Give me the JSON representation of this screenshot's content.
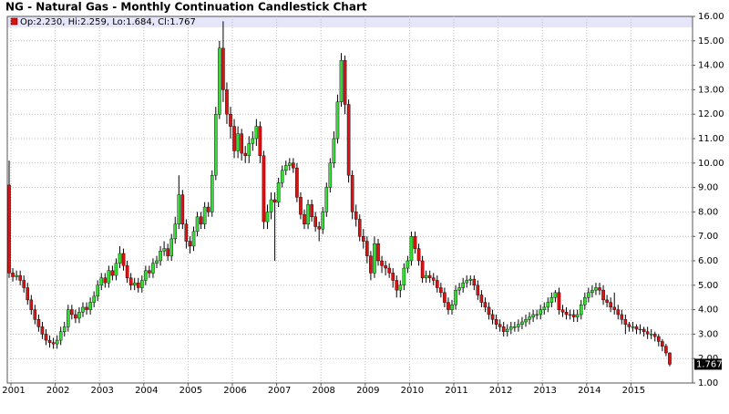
{
  "chart_data": {
    "type": "candlestick",
    "title": "NG - Natural Gas - Monthly Continuation Candlestick Chart",
    "legend": "Op:2.230, Hi:2.259, Lo:1.684, Cl:1.767",
    "up_color": "#33dd33",
    "down_color": "#dd1111",
    "grid": true,
    "categories": [
      "2001",
      null,
      null,
      null,
      null,
      null,
      null,
      null,
      null,
      null,
      null,
      null,
      "2002",
      null,
      null,
      null,
      null,
      null,
      null,
      null,
      null,
      null,
      null,
      null,
      "2003",
      null,
      null,
      null,
      null,
      null,
      null,
      null,
      null,
      null,
      null,
      null,
      "2004",
      null,
      null,
      null,
      null,
      null,
      null,
      null,
      null,
      null,
      null,
      null,
      "2005",
      null,
      null,
      null,
      null,
      null,
      null,
      null,
      null,
      null,
      null,
      null,
      "2006",
      null,
      null,
      null,
      null,
      null,
      null,
      null,
      null,
      null,
      null,
      null,
      "2007",
      null,
      null,
      null,
      null,
      null,
      null,
      null,
      null,
      null,
      null,
      null,
      "2008",
      null,
      null,
      null,
      null,
      null,
      null,
      null,
      null,
      null,
      null,
      null,
      "2009",
      null,
      null,
      null,
      null,
      null,
      null,
      null,
      null,
      null,
      null,
      null,
      "2010",
      null,
      null,
      null,
      null,
      null,
      null,
      null,
      null,
      null,
      null,
      null,
      "2011",
      null,
      null,
      null,
      null,
      null,
      null,
      null,
      null,
      null,
      null,
      null,
      "2012",
      null,
      null,
      null,
      null,
      null,
      null,
      null,
      null,
      null,
      null,
      null,
      "2013",
      null,
      null,
      null,
      null,
      null,
      null,
      null,
      null,
      null,
      null,
      null,
      "2014",
      null,
      null,
      null,
      null,
      null,
      null,
      null,
      null,
      null,
      null,
      null,
      "2015",
      null,
      null,
      null,
      null,
      null,
      null,
      null,
      null,
      null,
      null,
      null
    ],
    "open": [
      9.1,
      5.5,
      5.35,
      5.4,
      5.2,
      4.9,
      4.4,
      4.0,
      3.6,
      3.3,
      3.0,
      2.75,
      2.65,
      2.6,
      2.75,
      3.1,
      3.3,
      4.0,
      3.8,
      3.65,
      3.9,
      4.1,
      4.0,
      4.3,
      4.55,
      5.0,
      5.3,
      5.1,
      5.6,
      5.4,
      5.9,
      6.3,
      5.8,
      5.3,
      5.0,
      5.1,
      4.9,
      5.2,
      5.6,
      5.5,
      5.9,
      6.0,
      6.4,
      6.5,
      6.2,
      6.9,
      7.5,
      8.7,
      7.5,
      6.8,
      6.6,
      7.2,
      7.8,
      7.5,
      8.2,
      8.0,
      9.5,
      12.0,
      14.7,
      13.0,
      12.0,
      11.5,
      10.5,
      11.2,
      10.4,
      10.3,
      10.8,
      11.0,
      11.5,
      10.3,
      7.6,
      8.0,
      8.5,
      8.4,
      9.2,
      9.7,
      9.9,
      10.0,
      9.8,
      8.6,
      7.9,
      7.5,
      8.3,
      7.8,
      7.4,
      7.3,
      8.0,
      9.0,
      10.0,
      11.0,
      12.5,
      14.2,
      12.4,
      9.5,
      8.0,
      7.7,
      7.0,
      6.8,
      6.2,
      5.5,
      6.7,
      6.0,
      5.8,
      5.7,
      5.5,
      5.2,
      4.8,
      5.0,
      5.7,
      6.0,
      7.0,
      6.5,
      6.0,
      5.3,
      5.4,
      5.3,
      5.2,
      4.9,
      4.7,
      4.3,
      4.0,
      4.2,
      4.8,
      4.9,
      5.1,
      5.2,
      5.25,
      5.0,
      4.6,
      4.3,
      4.1,
      3.8,
      3.6,
      3.4,
      3.3,
      3.1,
      3.2,
      3.3,
      3.3,
      3.4,
      3.5,
      3.6,
      3.7,
      3.8,
      3.8,
      4.0,
      4.1,
      4.3,
      4.5,
      4.7,
      4.0,
      3.9,
      3.8,
      3.8,
      3.7,
      3.8,
      4.2,
      4.5,
      4.7,
      4.8,
      4.9,
      4.8,
      4.4,
      4.3,
      4.1,
      4.0,
      3.8,
      3.6,
      3.4,
      3.3,
      3.3,
      3.2,
      3.2,
      3.1,
      3.0,
      3.0,
      2.9,
      2.7,
      2.5,
      2.23
    ],
    "high": [
      10.1,
      5.7,
      5.6,
      5.6,
      5.4,
      5.1,
      4.6,
      4.2,
      3.8,
      3.5,
      3.2,
      2.95,
      2.85,
      2.95,
      3.3,
      3.5,
      4.2,
      4.2,
      4.0,
      4.1,
      4.3,
      4.3,
      4.5,
      4.75,
      5.2,
      5.5,
      5.5,
      5.8,
      5.8,
      6.1,
      6.6,
      6.5,
      6.0,
      5.5,
      5.3,
      5.3,
      5.4,
      5.8,
      5.8,
      6.1,
      6.2,
      6.6,
      6.8,
      6.7,
      7.1,
      7.8,
      9.5,
      8.9,
      7.7,
      7.0,
      7.4,
      8.0,
      8.0,
      8.4,
      8.4,
      9.7,
      12.3,
      15.0,
      15.8,
      13.3,
      12.3,
      11.8,
      11.5,
      11.4,
      10.7,
      11.1,
      11.3,
      11.8,
      11.7,
      10.5,
      8.3,
      8.8,
      8.8,
      9.4,
      9.9,
      10.1,
      10.2,
      10.2,
      10.0,
      8.8,
      8.1,
      8.5,
      8.5,
      8.0,
      7.6,
      8.2,
      9.2,
      10.2,
      11.3,
      12.8,
      14.5,
      14.4,
      12.6,
      9.7,
      8.3,
      7.9,
      7.3,
      7.0,
      6.4,
      7.0,
      6.9,
      6.2,
      6.0,
      5.9,
      5.7,
      5.4,
      5.2,
      5.9,
      6.2,
      7.2,
      7.2,
      6.7,
      6.2,
      5.6,
      5.6,
      5.5,
      5.4,
      5.1,
      4.9,
      4.5,
      4.4,
      5.0,
      5.1,
      5.3,
      5.4,
      5.4,
      5.4,
      5.2,
      4.8,
      4.5,
      4.3,
      4.0,
      3.8,
      3.6,
      3.5,
      3.4,
      3.5,
      3.5,
      3.6,
      3.7,
      3.8,
      3.9,
      4.0,
      4.0,
      4.2,
      4.3,
      4.5,
      4.7,
      4.8,
      4.9,
      4.2,
      4.1,
      4.0,
      4.0,
      4.0,
      4.4,
      4.7,
      4.9,
      5.0,
      5.1,
      5.1,
      5.0,
      4.6,
      4.5,
      4.7,
      4.2,
      4.0,
      3.8,
      3.5,
      3.5,
      3.4,
      3.4,
      3.3,
      3.3,
      3.2,
      3.1,
      3.0,
      2.8,
      2.6,
      2.259
    ],
    "low": [
      5.3,
      5.15,
      5.2,
      5.0,
      4.7,
      4.2,
      3.8,
      3.4,
      3.1,
      2.8,
      2.55,
      2.45,
      2.4,
      2.4,
      2.55,
      2.9,
      3.1,
      3.6,
      3.45,
      3.45,
      3.7,
      3.8,
      3.8,
      4.1,
      4.35,
      4.8,
      4.9,
      4.9,
      5.2,
      5.2,
      5.7,
      5.6,
      5.1,
      4.8,
      4.8,
      4.7,
      4.7,
      5.0,
      5.3,
      5.3,
      5.7,
      5.8,
      6.2,
      6.0,
      6.0,
      6.7,
      7.3,
      7.3,
      6.5,
      6.3,
      6.4,
      7.0,
      7.3,
      7.3,
      7.8,
      7.8,
      9.3,
      11.8,
      12.5,
      11.6,
      11.0,
      10.2,
      10.2,
      10.1,
      10.0,
      10.0,
      10.5,
      10.7,
      10.0,
      7.3,
      7.3,
      7.7,
      6.0,
      8.2,
      9.0,
      9.5,
      9.7,
      9.6,
      8.4,
      7.7,
      7.3,
      7.3,
      7.6,
      7.2,
      6.8,
      7.1,
      7.8,
      8.8,
      9.8,
      10.8,
      12.3,
      12.0,
      9.2,
      7.7,
      7.4,
      6.8,
      6.5,
      5.9,
      5.2,
      5.3,
      5.8,
      5.5,
      5.4,
      5.3,
      4.9,
      4.5,
      4.5,
      4.8,
      5.5,
      5.8,
      6.3,
      5.8,
      5.1,
      5.1,
      5.1,
      5.0,
      4.7,
      4.5,
      4.1,
      3.8,
      3.8,
      4.0,
      4.6,
      4.7,
      4.9,
      5.0,
      4.8,
      4.4,
      4.1,
      3.9,
      3.6,
      3.4,
      3.2,
      3.1,
      2.9,
      2.9,
      3.0,
      3.1,
      3.1,
      3.2,
      3.3,
      3.4,
      3.5,
      3.6,
      3.6,
      3.8,
      3.9,
      4.1,
      4.3,
      3.8,
      3.7,
      3.6,
      3.6,
      3.5,
      3.5,
      3.6,
      4.0,
      4.3,
      4.5,
      4.6,
      4.6,
      4.2,
      4.1,
      3.9,
      3.8,
      3.6,
      3.4,
      3.0,
      3.1,
      3.1,
      3.0,
      3.0,
      2.9,
      2.8,
      2.8,
      2.7,
      2.5,
      2.3,
      2.1,
      1.684
    ],
    "close": [
      5.5,
      5.35,
      5.4,
      5.2,
      4.9,
      4.4,
      4.0,
      3.6,
      3.3,
      3.0,
      2.75,
      2.65,
      2.6,
      2.75,
      3.1,
      3.3,
      4.0,
      3.8,
      3.65,
      3.9,
      4.1,
      4.0,
      4.3,
      4.55,
      5.0,
      5.3,
      5.1,
      5.6,
      5.4,
      5.9,
      6.3,
      5.8,
      5.3,
      5.0,
      5.1,
      4.9,
      5.2,
      5.6,
      5.5,
      5.9,
      6.0,
      6.4,
      6.5,
      6.2,
      6.9,
      7.5,
      8.7,
      7.5,
      6.8,
      6.6,
      7.2,
      7.8,
      7.5,
      8.2,
      8.0,
      9.5,
      12.0,
      14.7,
      13.0,
      12.0,
      11.5,
      10.5,
      11.2,
      10.4,
      10.3,
      10.8,
      11.0,
      11.5,
      10.3,
      7.6,
      8.0,
      8.5,
      8.4,
      9.2,
      9.7,
      9.9,
      10.0,
      9.8,
      8.6,
      7.9,
      7.5,
      8.3,
      7.8,
      7.4,
      7.3,
      8.0,
      9.0,
      10.0,
      11.0,
      12.5,
      14.2,
      12.4,
      9.5,
      8.0,
      7.7,
      7.0,
      6.8,
      6.2,
      5.5,
      6.7,
      6.0,
      5.8,
      5.7,
      5.5,
      5.2,
      4.8,
      5.0,
      5.7,
      6.0,
      7.0,
      6.5,
      6.0,
      5.3,
      5.4,
      5.3,
      5.2,
      4.9,
      4.7,
      4.3,
      4.0,
      4.2,
      4.8,
      4.9,
      5.1,
      5.2,
      5.25,
      5.0,
      4.6,
      4.3,
      4.1,
      3.8,
      3.6,
      3.4,
      3.3,
      3.1,
      3.2,
      3.3,
      3.3,
      3.4,
      3.5,
      3.6,
      3.7,
      3.8,
      3.8,
      4.0,
      4.1,
      4.3,
      4.5,
      4.7,
      4.0,
      3.9,
      3.8,
      3.8,
      3.7,
      3.8,
      4.2,
      4.5,
      4.7,
      4.8,
      4.9,
      4.8,
      4.4,
      4.3,
      4.1,
      4.0,
      3.8,
      3.6,
      3.4,
      3.3,
      3.3,
      3.2,
      3.2,
      3.1,
      3.0,
      3.0,
      2.9,
      2.7,
      2.5,
      2.23,
      1.767
    ],
    "ylim": [
      1,
      16
    ],
    "yticks": [
      {
        "value": 1,
        "label": "1.00"
      },
      {
        "value": 2,
        "label": "2.00"
      },
      {
        "value": 3,
        "label": "3.00"
      },
      {
        "value": 4,
        "label": "4.00"
      },
      {
        "value": 5,
        "label": "5.00"
      },
      {
        "value": 6,
        "label": "6.00"
      },
      {
        "value": 7,
        "label": "7.00"
      },
      {
        "value": 8,
        "label": "8.00"
      },
      {
        "value": 9,
        "label": "9.00"
      },
      {
        "value": 10,
        "label": "10.00"
      },
      {
        "value": 11,
        "label": "11.00"
      },
      {
        "value": 12,
        "label": "12.00"
      },
      {
        "value": 13,
        "label": "13.00"
      },
      {
        "value": 14,
        "label": "14.00"
      },
      {
        "value": 15,
        "label": "15.00"
      },
      {
        "value": 16,
        "label": "16.00"
      }
    ]
  }
}
